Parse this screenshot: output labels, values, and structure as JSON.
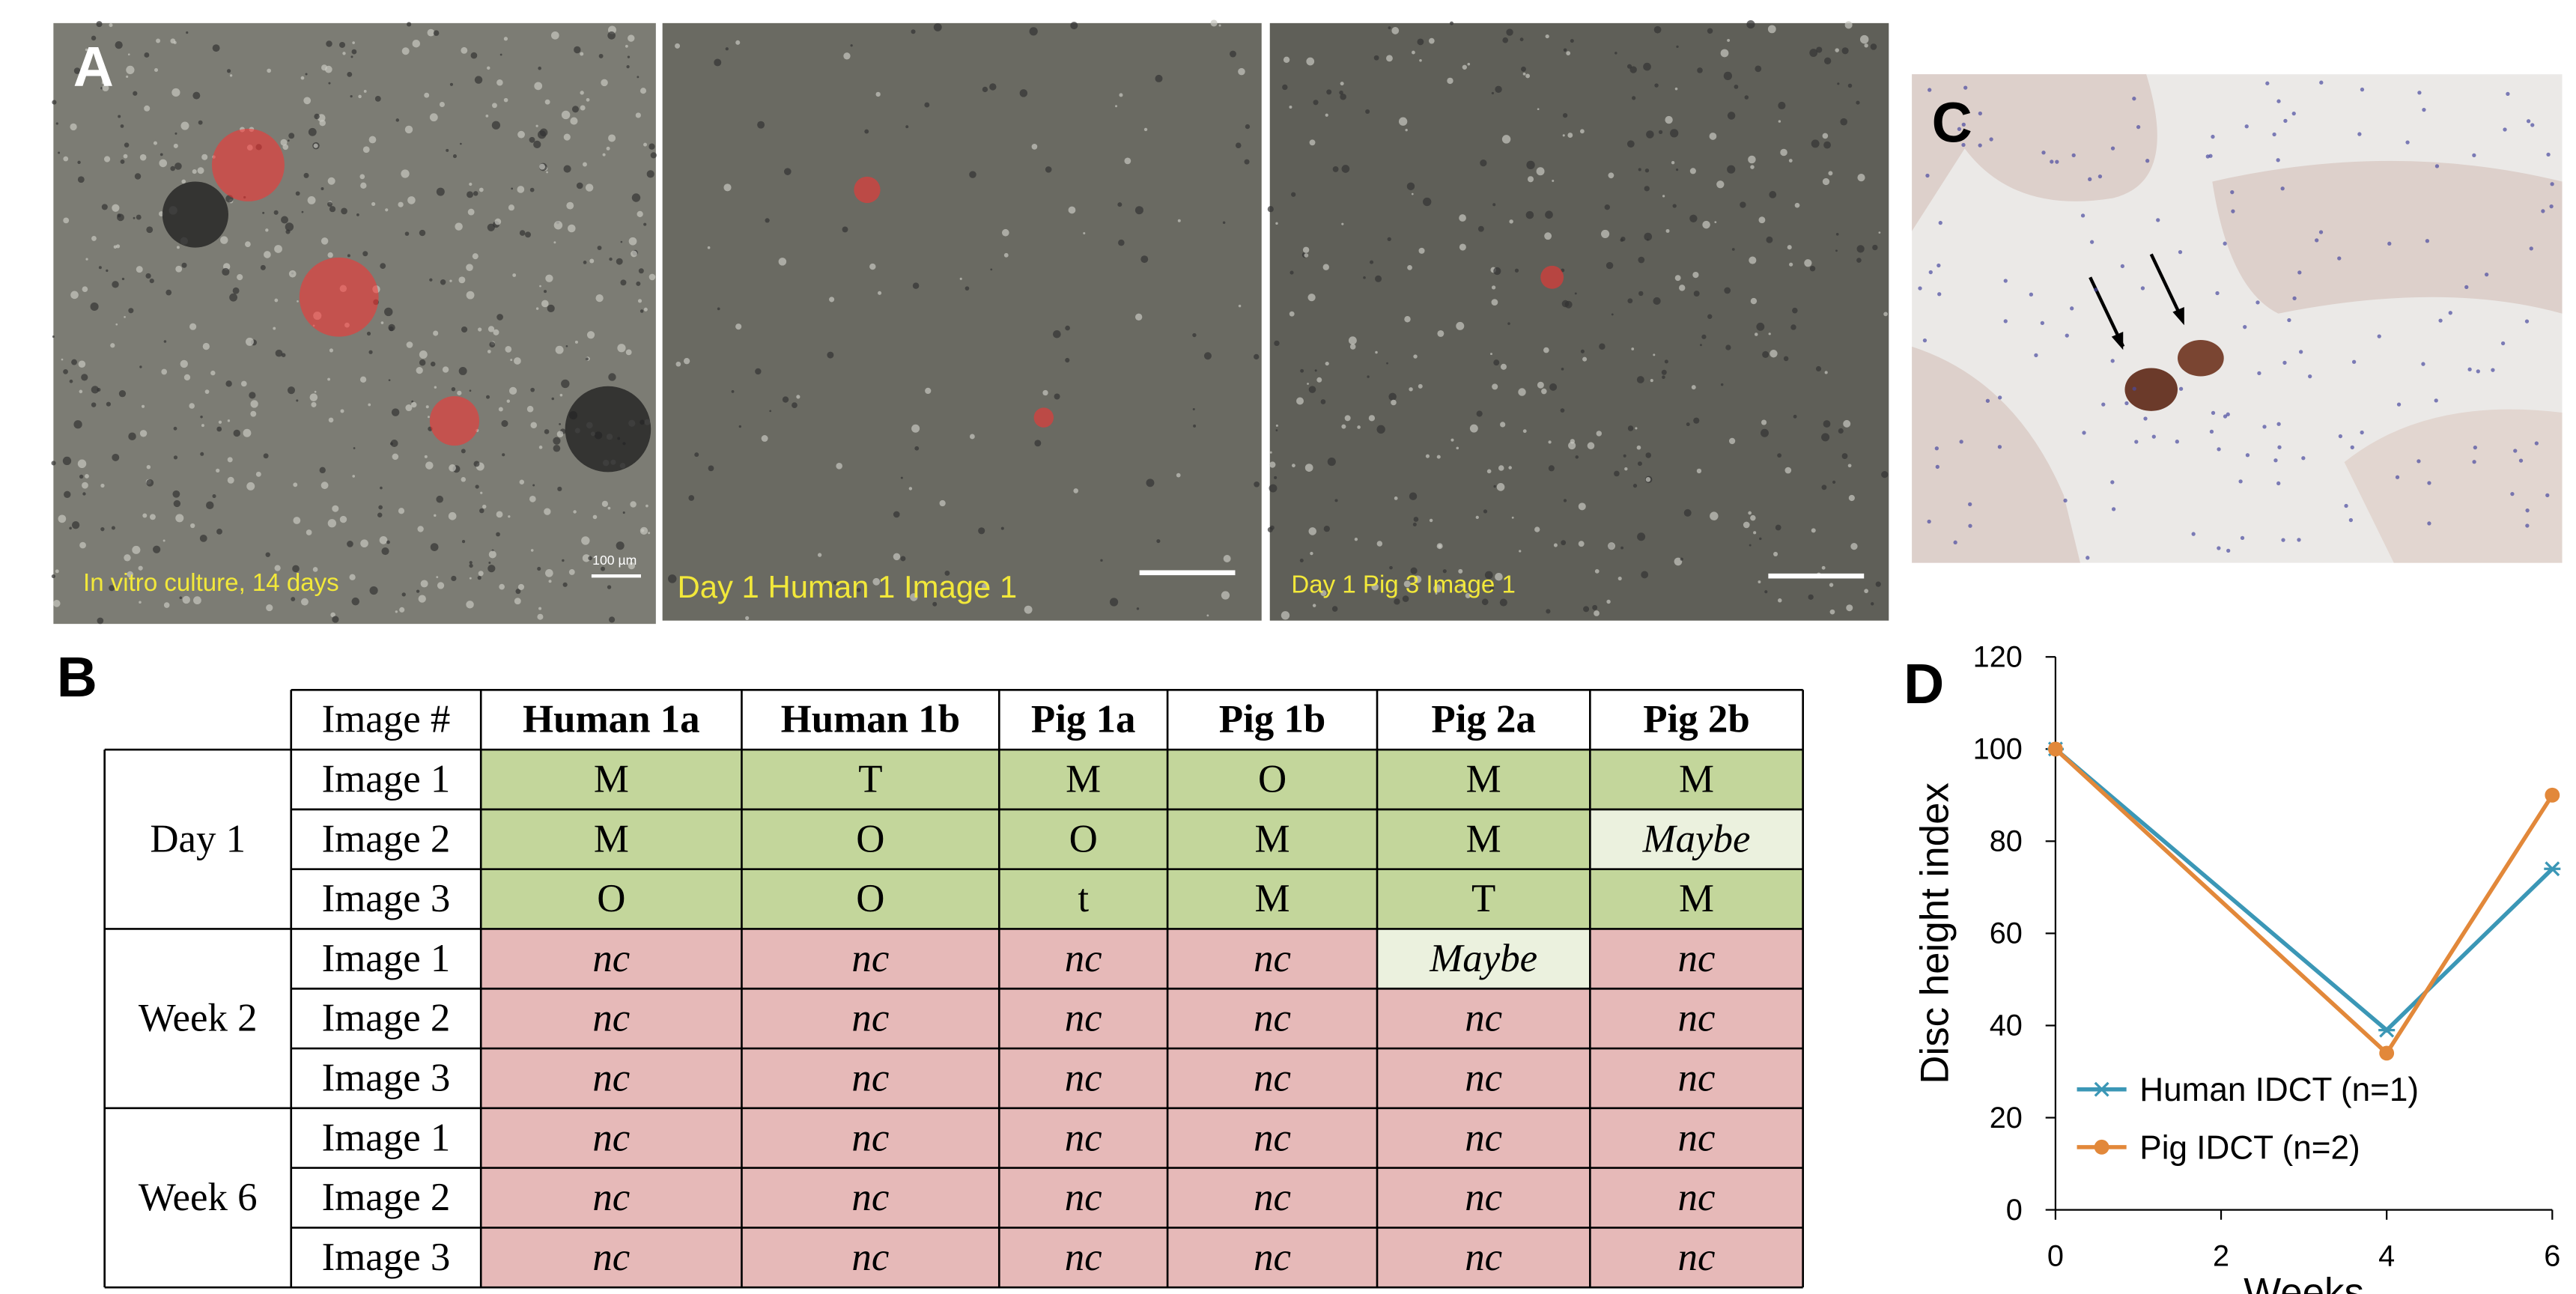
{
  "panel_labels": [
    "A",
    "B",
    "C",
    "D"
  ],
  "panel_a": {
    "captions": [
      "In vitro culture, 14 days",
      "Day 1 Human 1 Image 1",
      "Day 1 Pig 3 Image 1"
    ],
    "scale_label": "100 µm"
  },
  "table": {
    "header": [
      "Image #",
      "Human 1a",
      "Human 1b",
      "Pig 1a",
      "Pig 1b",
      "Pig 2a",
      "Pig 2b"
    ],
    "highlight_fill": "#ebf1de",
    "highlights": [
      [
        0,
        1,
        6
      ],
      [
        1,
        0,
        5
      ]
    ],
    "groups": [
      {
        "name": "Day 1",
        "fill": "#c3d69b",
        "italic": false,
        "rows": [
          [
            "Image 1",
            "M",
            "T",
            "M",
            "O",
            "M",
            "M"
          ],
          [
            "Image 2",
            "M",
            "O",
            "O",
            "M",
            "M",
            "Maybe"
          ],
          [
            "Image 3",
            "O",
            "O",
            "t",
            "M",
            "T",
            "M"
          ]
        ]
      },
      {
        "name": "Week 2",
        "fill": "#e6b9b8",
        "italic": true,
        "rows": [
          [
            "Image 1",
            "nc",
            "nc",
            "nc",
            "nc",
            "Maybe",
            "nc"
          ],
          [
            "Image 2",
            "nc",
            "nc",
            "nc",
            "nc",
            "nc",
            "nc"
          ],
          [
            "Image 3",
            "nc",
            "nc",
            "nc",
            "nc",
            "nc",
            "nc"
          ]
        ]
      },
      {
        "name": "Week 6",
        "fill": "#e6b9b8",
        "italic": true,
        "rows": [
          [
            "Image 1",
            "nc",
            "nc",
            "nc",
            "nc",
            "nc",
            "nc"
          ],
          [
            "Image 2",
            "nc",
            "nc",
            "nc",
            "nc",
            "nc",
            "nc"
          ],
          [
            "Image 3",
            "nc",
            "nc",
            "nc",
            "nc",
            "nc",
            "nc"
          ]
        ]
      }
    ]
  },
  "chart_data": {
    "type": "line",
    "xlabel": "Weeks",
    "ylabel": "Disc height index",
    "x": [
      0,
      4,
      6
    ],
    "series": [
      {
        "name": "Human IDCT (n=1)",
        "color": "#3b97b6",
        "marker": "x",
        "values": [
          100,
          39,
          74
        ]
      },
      {
        "name": "Pig IDCT (n=2)",
        "color": "#e2883a",
        "marker": "circle",
        "values": [
          100,
          34,
          90
        ]
      }
    ],
    "xlim": [
      0,
      6
    ],
    "xticks": [
      0,
      2,
      4,
      6
    ],
    "ylim": [
      0,
      120
    ],
    "yticks": [
      0,
      20,
      40,
      60,
      80,
      100,
      120
    ]
  }
}
